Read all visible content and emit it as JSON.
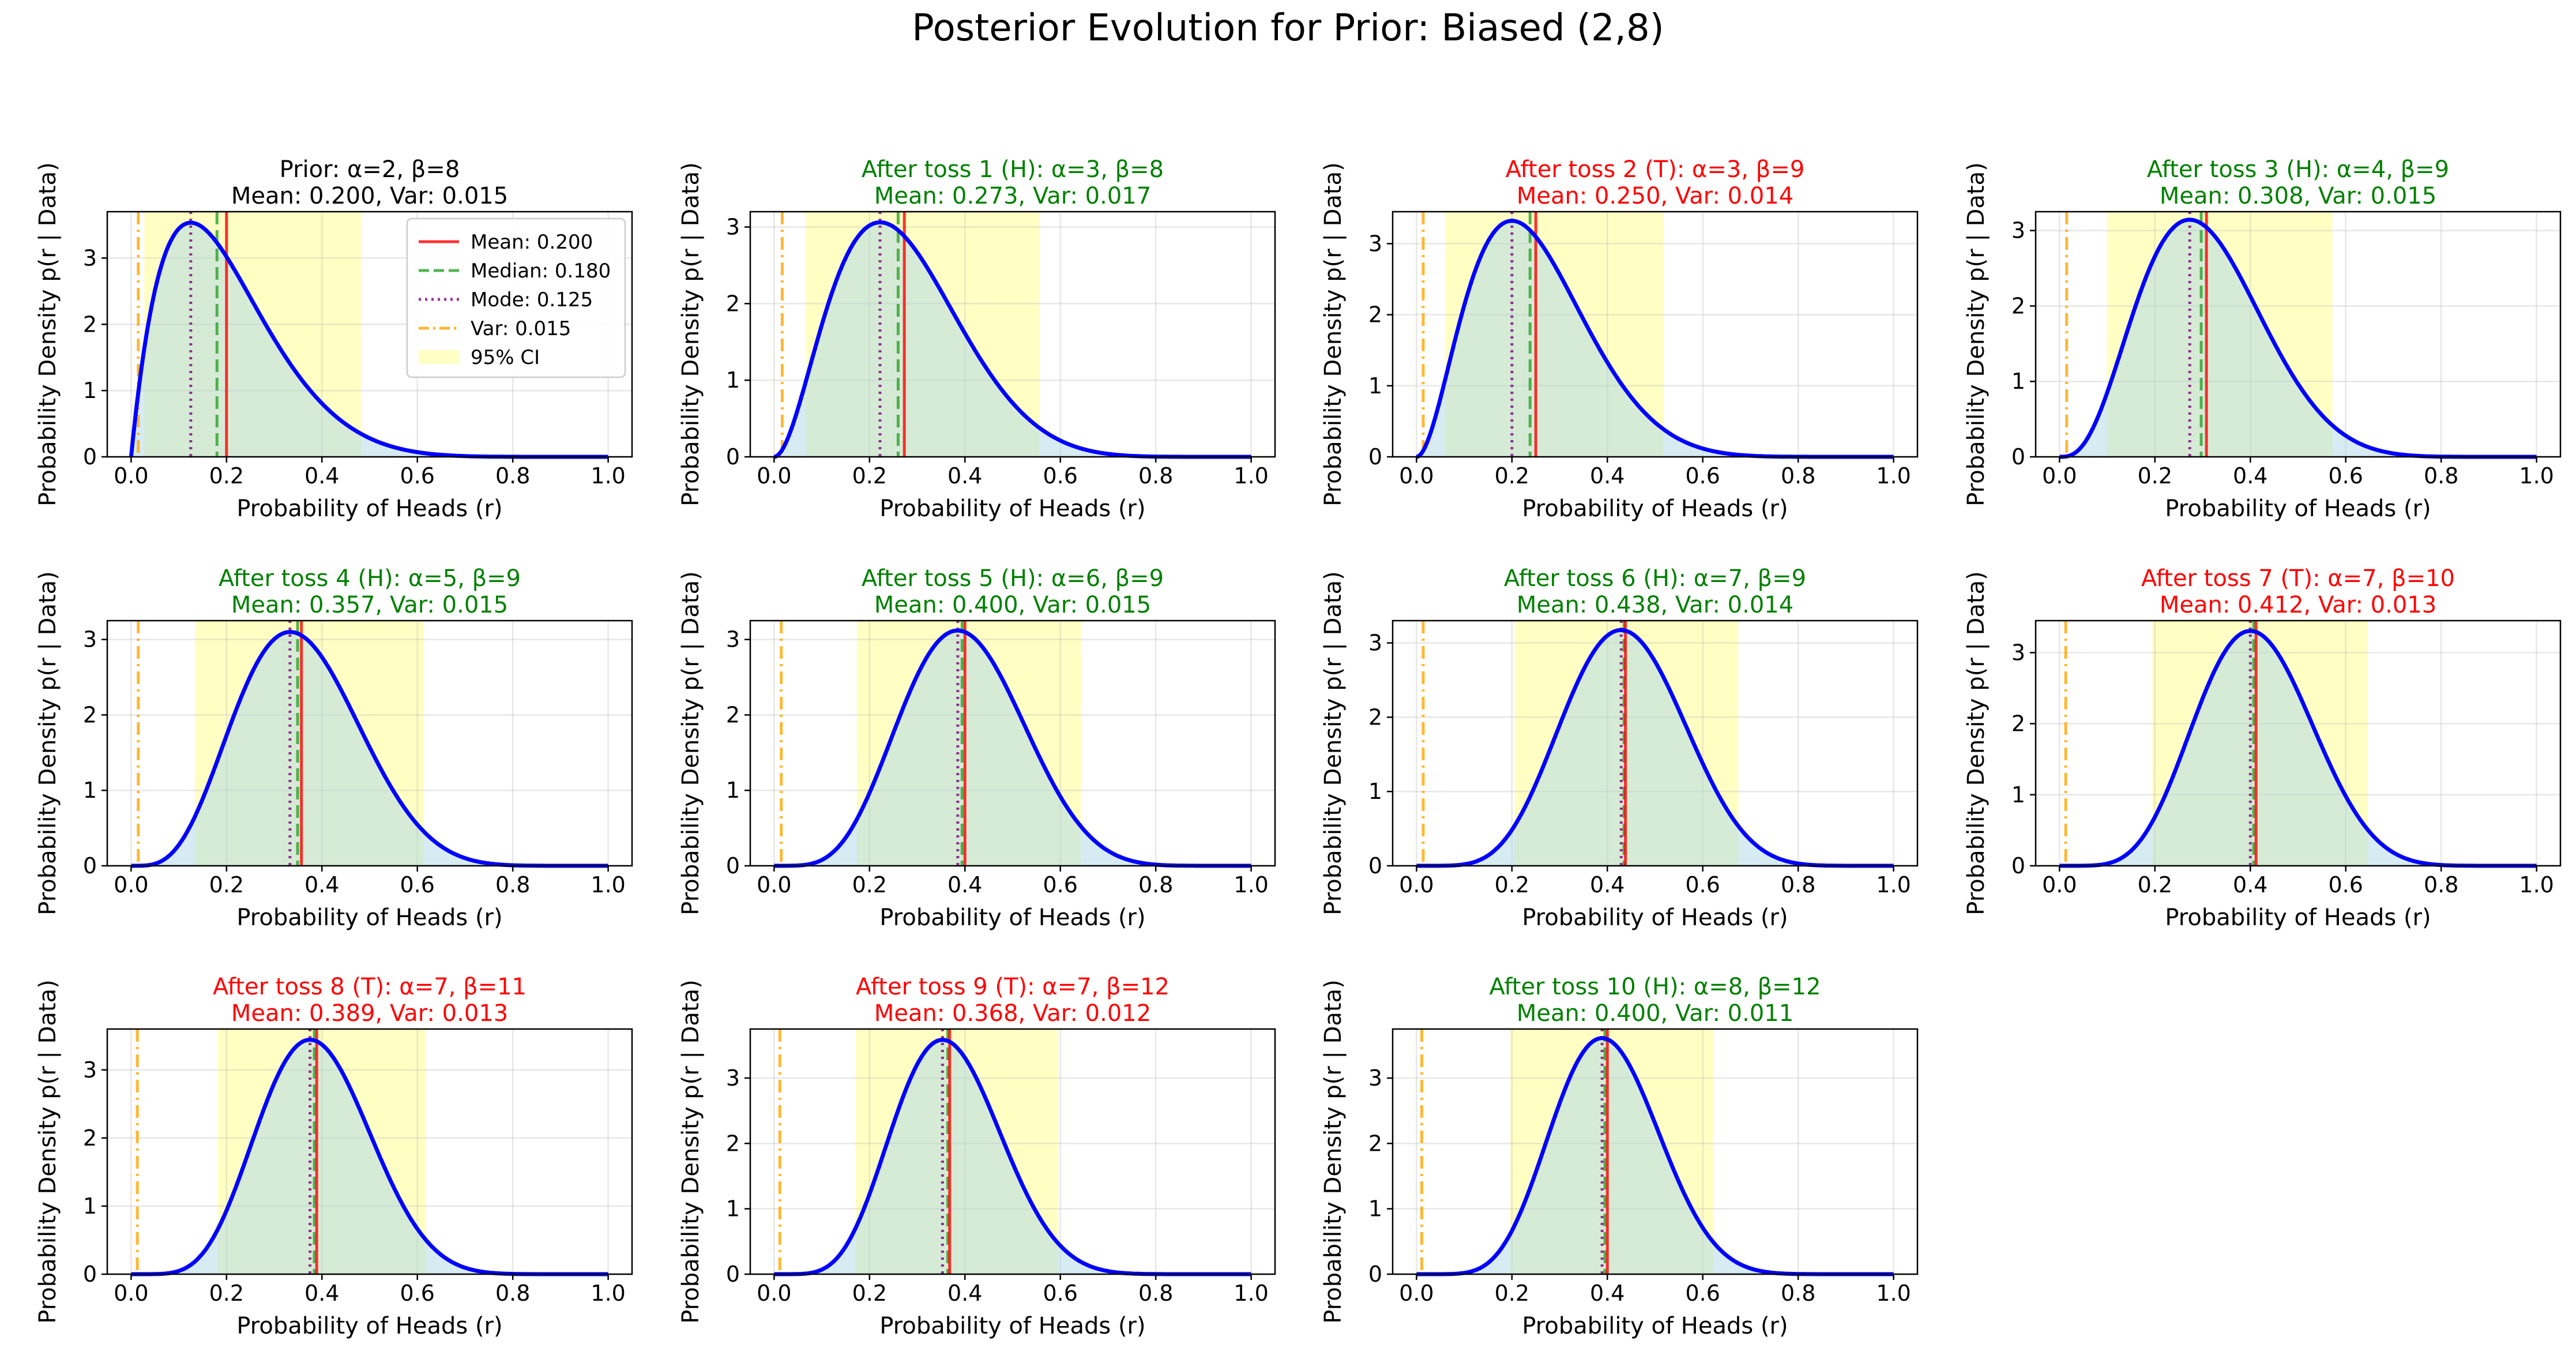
{
  "suptitle": "Posterior Evolution for Prior: Biased (2,8)",
  "colors": {
    "pdf_line": "#0000ff",
    "mean": "#ff0000",
    "median": "#2ca02c",
    "mode": "#800080",
    "var": "#ffa500",
    "ci_fill": "#ffffb0",
    "area_fill": "#add8e6",
    "title_heads": "#008000",
    "title_tails": "#ff0000",
    "title_prior": "#000000"
  },
  "legend": {
    "items": [
      {
        "label": "Mean: 0.200",
        "style": "mean"
      },
      {
        "label": "Median: 0.180",
        "style": "median"
      },
      {
        "label": "Mode: 0.125",
        "style": "mode"
      },
      {
        "label": "Var: 0.015",
        "style": "var"
      },
      {
        "label": "95% CI",
        "style": "ci"
      }
    ],
    "position": "upper right (first subplot)"
  },
  "chart_data": [
    {
      "type": "line",
      "title": [
        "Prior: α=2, β=8",
        "Mean: 0.200, Var: 0.015"
      ],
      "title_color": "prior",
      "alpha": 2,
      "beta": 8,
      "mean": 0.2,
      "median": 0.18,
      "mode": 0.125,
      "var": 0.015,
      "ci": [
        0.0276,
        0.4822
      ],
      "xlim": [
        0,
        1
      ],
      "ylim": [
        0,
        3.7
      ],
      "yticks": [
        0,
        1,
        2,
        3
      ],
      "xlabel": "Probability of Heads (r)",
      "ylabel": "Probability Density p(r | Data)",
      "grid": true
    },
    {
      "type": "line",
      "title": [
        "After toss 1 (H): α=3, β=8",
        "Mean: 0.273, Var: 0.017"
      ],
      "title_color": "heads",
      "alpha": 3,
      "beta": 8,
      "mean": 0.273,
      "median": 0.26,
      "mode": 0.222,
      "var": 0.017,
      "ci": [
        0.0667,
        0.5561
      ],
      "xlim": [
        0,
        1
      ],
      "ylim": [
        0,
        3.2
      ],
      "yticks": [
        0,
        1,
        2,
        3
      ],
      "xlabel": "Probability of Heads (r)",
      "ylabel": "Probability Density p(r | Data)",
      "grid": true
    },
    {
      "type": "line",
      "title": [
        "After toss 2 (T): α=3, β=9",
        "Mean: 0.250, Var: 0.014"
      ],
      "title_color": "tails",
      "alpha": 3,
      "beta": 9,
      "mean": 0.25,
      "median": 0.238,
      "mode": 0.2,
      "var": 0.014,
      "ci": [
        0.0602,
        0.5174
      ],
      "xlim": [
        0,
        1
      ],
      "ylim": [
        0,
        3.45
      ],
      "yticks": [
        0,
        1,
        2,
        3
      ],
      "xlabel": "Probability of Heads (r)",
      "ylabel": "Probability Density p(r | Data)",
      "grid": true
    },
    {
      "type": "line",
      "title": [
        "After toss 3 (H): α=4, β=9",
        "Mean: 0.308, Var: 0.015"
      ],
      "title_color": "heads",
      "alpha": 4,
      "beta": 9,
      "mean": 0.308,
      "median": 0.297,
      "mode": 0.273,
      "var": 0.015,
      "ci": [
        0.0993,
        0.5719
      ],
      "xlim": [
        0,
        1
      ],
      "ylim": [
        0,
        3.25
      ],
      "yticks": [
        0,
        1,
        2,
        3
      ],
      "xlabel": "Probability of Heads (r)",
      "ylabel": "Probability Density p(r | Data)",
      "grid": true
    },
    {
      "type": "line",
      "title": [
        "After toss 4 (H): α=5, β=9",
        "Mean: 0.357, Var: 0.015"
      ],
      "title_color": "heads",
      "alpha": 5,
      "beta": 9,
      "mean": 0.357,
      "median": 0.349,
      "mode": 0.333,
      "var": 0.015,
      "ci": [
        0.1339,
        0.6127
      ],
      "xlim": [
        0,
        1
      ],
      "ylim": [
        0,
        3.25
      ],
      "yticks": [
        0,
        1,
        2,
        3
      ],
      "xlabel": "Probability of Heads (r)",
      "ylabel": "Probability Density p(r | Data)",
      "grid": true
    },
    {
      "type": "line",
      "title": [
        "After toss 5 (H): α=6, β=9",
        "Mean: 0.400, Var: 0.015"
      ],
      "title_color": "heads",
      "alpha": 6,
      "beta": 9,
      "mean": 0.4,
      "median": 0.394,
      "mode": 0.385,
      "var": 0.015,
      "ci": [
        0.1733,
        0.6434
      ],
      "xlim": [
        0,
        1
      ],
      "ylim": [
        0,
        3.25
      ],
      "yticks": [
        0,
        1,
        2,
        3
      ],
      "xlabel": "Probability of Heads (r)",
      "ylabel": "Probability Density p(r | Data)",
      "grid": true
    },
    {
      "type": "line",
      "title": [
        "After toss 6 (H): α=7, β=9",
        "Mean: 0.438, Var: 0.014"
      ],
      "title_color": "heads",
      "alpha": 7,
      "beta": 9,
      "mean": 0.438,
      "median": 0.435,
      "mode": 0.429,
      "var": 0.014,
      "ci": [
        0.2058,
        0.6748
      ],
      "xlim": [
        0,
        1
      ],
      "ylim": [
        0,
        3.3
      ],
      "yticks": [
        0,
        1,
        2,
        3
      ],
      "xlabel": "Probability of Heads (r)",
      "ylabel": "Probability Density p(r | Data)",
      "grid": true
    },
    {
      "type": "line",
      "title": [
        "After toss 7 (T): α=7, β=10",
        "Mean: 0.412, Var: 0.013"
      ],
      "title_color": "tails",
      "alpha": 7,
      "beta": 10,
      "mean": 0.412,
      "median": 0.407,
      "mode": 0.4,
      "var": 0.013,
      "ci": [
        0.1944,
        0.6465
      ],
      "xlim": [
        0,
        1
      ],
      "ylim": [
        0,
        3.45
      ],
      "yticks": [
        0,
        1,
        2,
        3
      ],
      "xlabel": "Probability of Heads (r)",
      "ylabel": "Probability Density p(r | Data)",
      "grid": true
    },
    {
      "type": "line",
      "title": [
        "After toss 8 (T): α=7, β=11",
        "Mean: 0.389, Var: 0.013"
      ],
      "title_color": "tails",
      "alpha": 7,
      "beta": 11,
      "mean": 0.389,
      "median": 0.384,
      "mode": 0.375,
      "var": 0.013,
      "ci": [
        0.1821,
        0.6182
      ],
      "xlim": [
        0,
        1
      ],
      "ylim": [
        0,
        3.6
      ],
      "yticks": [
        0,
        1,
        2,
        3
      ],
      "xlabel": "Probability of Heads (r)",
      "ylabel": "Probability Density p(r | Data)",
      "grid": true
    },
    {
      "type": "line",
      "title": [
        "After toss 9 (T): α=7, β=12",
        "Mean: 0.368, Var: 0.012"
      ],
      "title_color": "tails",
      "alpha": 7,
      "beta": 12,
      "mean": 0.368,
      "median": 0.364,
      "mode": 0.353,
      "var": 0.012,
      "ci": [
        0.1708,
        0.5957
      ],
      "xlim": [
        0,
        1
      ],
      "ylim": [
        0,
        3.75
      ],
      "yticks": [
        0,
        1,
        2,
        3
      ],
      "xlabel": "Probability of Heads (r)",
      "ylabel": "Probability Density p(r | Data)",
      "grid": true
    },
    {
      "type": "line",
      "title": [
        "After toss 10 (H): α=8, β=12",
        "Mean: 0.400, Var: 0.011"
      ],
      "title_color": "heads",
      "alpha": 8,
      "beta": 12,
      "mean": 0.4,
      "median": 0.395,
      "mode": 0.389,
      "var": 0.011,
      "ci": [
        0.1964,
        0.6226
      ],
      "xlim": [
        0,
        1
      ],
      "ylim": [
        0,
        3.75
      ],
      "yticks": [
        0,
        1,
        2,
        3
      ],
      "xlabel": "Probability of Heads (r)",
      "ylabel": "Probability Density p(r | Data)",
      "grid": true
    }
  ]
}
